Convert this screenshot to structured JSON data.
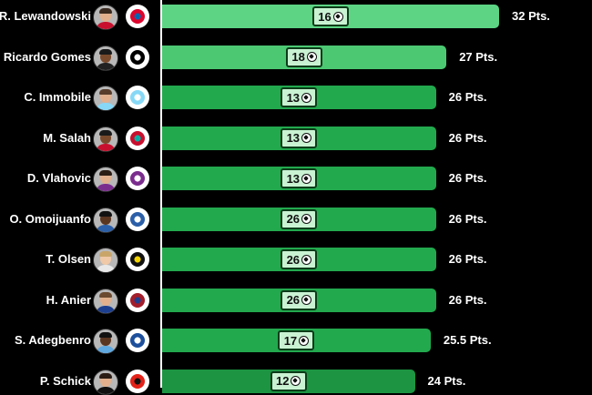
{
  "chart_data": {
    "type": "bar",
    "orientation": "horizontal",
    "value_suffix": "Pts.",
    "categories": [
      "R. Lewandowski",
      "Ricardo Gomes",
      "C. Immobile",
      "M. Salah",
      "D. Vlahovic",
      "O. Omoijuanfo",
      "T. Olsen",
      "H. Anier",
      "S. Adegbenro",
      "P. Schick"
    ],
    "values": [
      32,
      27,
      26,
      26,
      26,
      26,
      26,
      26,
      25.5,
      24
    ],
    "value_labels": [
      "32 Pts.",
      "27 Pts.",
      "26 Pts.",
      "26 Pts.",
      "26 Pts.",
      "26 Pts.",
      "26 Pts.",
      "26 Pts.",
      "25.5 Pts.",
      "24 Pts."
    ],
    "goals": [
      "16",
      "18",
      "13",
      "13",
      "13",
      "26",
      "26",
      "26",
      "17",
      "12"
    ],
    "xlim": [
      0,
      32
    ],
    "grid": false,
    "title": "",
    "xlabel": "",
    "ylabel": ""
  },
  "players": [
    {
      "skin": "#e2b08d",
      "hair": "#3b2b20",
      "shirt": "#c8102e",
      "club": "#dc052d",
      "club2": "#0066b2"
    },
    {
      "skin": "#7a4a2c",
      "hair": "#1a1a1a",
      "shirt": "#222222",
      "club": "#000000",
      "club2": "#ffffff"
    },
    {
      "skin": "#e2b08d",
      "hair": "#5a3d2b",
      "shirt": "#87d8f7",
      "club": "#87d8f7",
      "club2": "#ffffff"
    },
    {
      "skin": "#7a4a2c",
      "hair": "#1a1a1a",
      "shirt": "#c8102e",
      "club": "#c8102e",
      "club2": "#00b2a9"
    },
    {
      "skin": "#e2b08d",
      "hair": "#2b1d14",
      "shirt": "#7b2d8e",
      "club": "#7b2d8e",
      "club2": "#ffffff"
    },
    {
      "skin": "#5a3520",
      "hair": "#111111",
      "shirt": "#2b5fa8",
      "club": "#2b5fa8",
      "club2": "#ffffff"
    },
    {
      "skin": "#f0c9a8",
      "hair": "#c9a56a",
      "shirt": "#e8e8e8",
      "club": "#111111",
      "club2": "#f5d400"
    },
    {
      "skin": "#e2b08d",
      "hair": "#6b4a2f",
      "shirt": "#1d3f8f",
      "club": "#a31d2b",
      "club2": "#1d3f8f"
    },
    {
      "skin": "#5a3520",
      "hair": "#111111",
      "shirt": "#5fa8e0",
      "club": "#1d4f9c",
      "club2": "#ffffff"
    },
    {
      "skin": "#e2b08d",
      "hair": "#2b1d14",
      "shirt": "#111111",
      "club": "#e32219",
      "club2": "#111111"
    }
  ],
  "colors": {
    "background": "#000000",
    "bar_top": "#5cd484",
    "bar_high": "#4cc873",
    "bar_mid": "#22a94e",
    "bar_low": "#1c9442",
    "badge": "#c9f2d3",
    "text": "#ffffff"
  }
}
